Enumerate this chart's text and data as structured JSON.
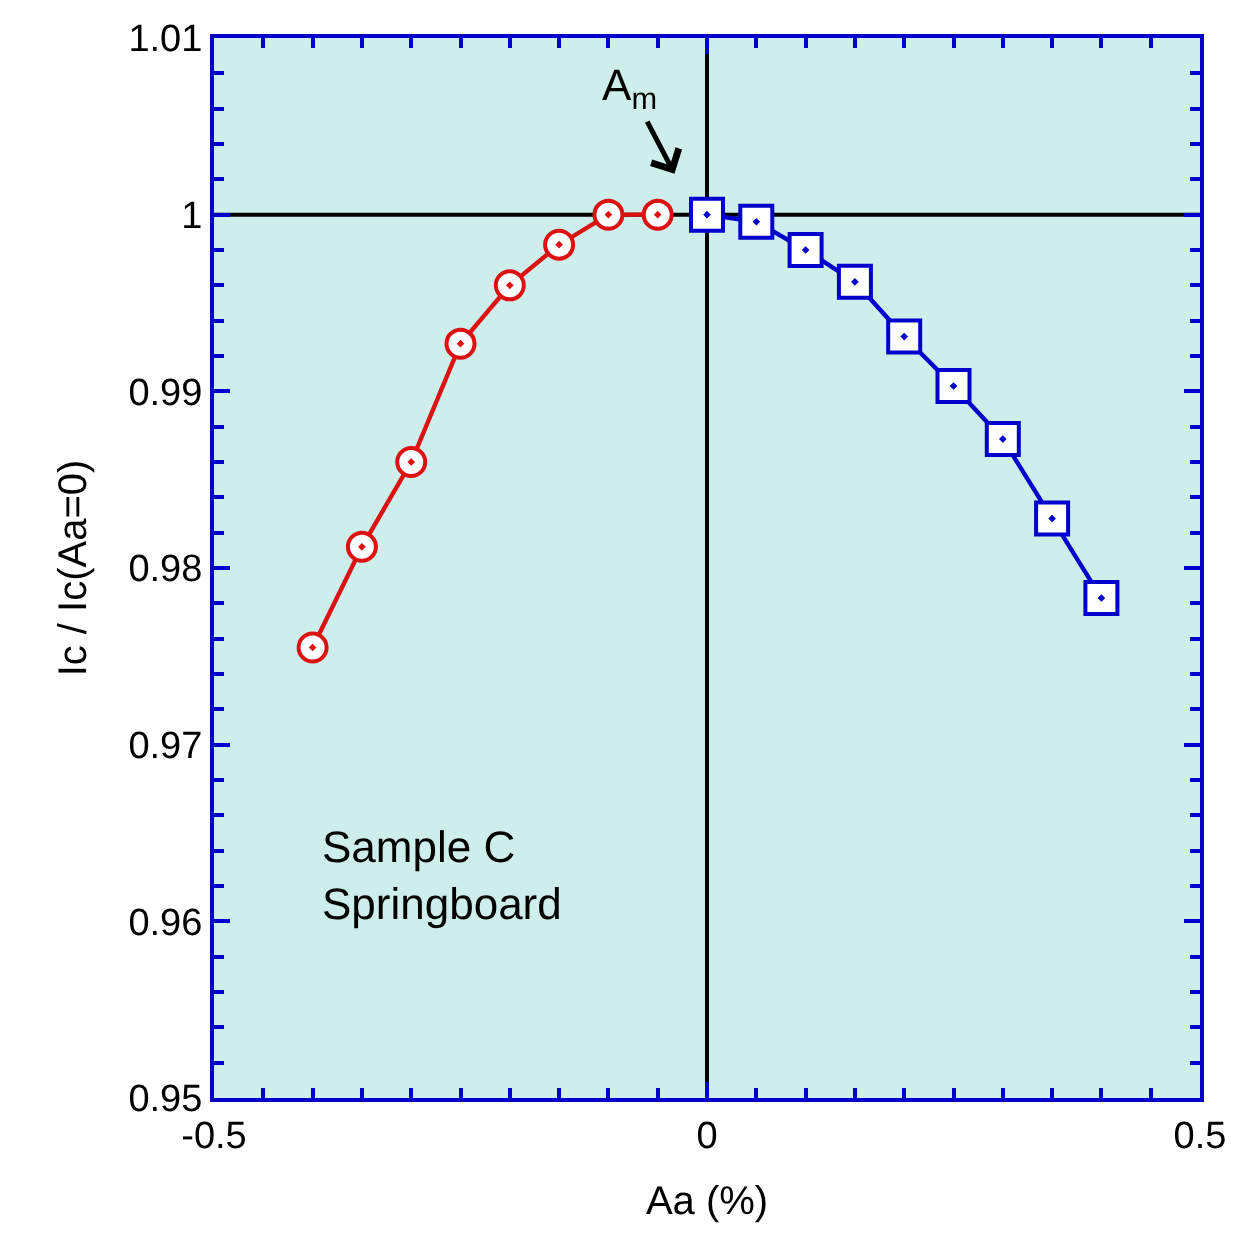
{
  "chart_data": {
    "type": "line",
    "xlabel": "Aa (%)",
    "ylabel": "Ic / Ic(Aa=0)",
    "series": [
      {
        "color": "#dd1111",
        "marker": "circle",
        "x": [
          -0.4,
          -0.35,
          -0.3,
          -0.25,
          -0.2,
          -0.15,
          -0.1,
          -0.05
        ],
        "values": [
          0.9755,
          0.9812,
          0.986,
          0.9927,
          0.996,
          0.9983,
          1.0,
          1.0
        ]
      },
      {
        "color": "#0000cc",
        "marker": "square",
        "x": [
          0,
          0.05,
          0.1,
          0.15,
          0.2,
          0.25,
          0.3,
          0.35,
          0.4
        ],
        "values": [
          1.0,
          0.9996,
          0.998,
          0.9962,
          0.9931,
          0.9903,
          0.9873,
          0.9828,
          0.9783
        ]
      }
    ],
    "xlim": [
      -0.5,
      0.5
    ],
    "xticks": [
      -0.5,
      0,
      0.5
    ],
    "ylim": [
      0.95,
      1.01
    ],
    "yticks": [
      0.95,
      0.96,
      0.97,
      0.98,
      0.99,
      {
        "value": 1.0,
        "label": "1"
      },
      1.01
    ],
    "ref_lines": [
      {
        "axis": "x",
        "value": 0,
        "color": "#000000"
      },
      {
        "axis": "y",
        "value": 1.0,
        "color": "#000000"
      }
    ],
    "annotations": [
      "A$_{m}$",
      "Sample C\nSpringboard"
    ],
    "grid": false
  }
}
